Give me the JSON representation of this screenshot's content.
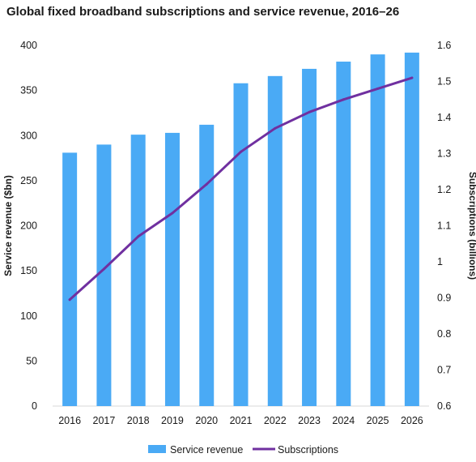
{
  "title": "Global fixed broadband subscriptions and service revenue, 2016–26",
  "colors": {
    "bar": "#4aaaf5",
    "line": "#7030a0"
  },
  "chart_data": {
    "type": "bar+line",
    "title": "Global fixed broadband subscriptions and service revenue, 2016–26",
    "categories": [
      "2016",
      "2017",
      "2018",
      "2019",
      "2020",
      "2021",
      "2022",
      "2023",
      "2024",
      "2025",
      "2026"
    ],
    "series": [
      {
        "name": "Service revenue",
        "type": "bar",
        "axis": "left",
        "values": [
          281,
          290,
          301,
          303,
          312,
          358,
          366,
          374,
          382,
          390,
          392
        ]
      },
      {
        "name": "Subscriptions",
        "type": "line",
        "axis": "right",
        "values": [
          0.895,
          0.98,
          1.07,
          1.135,
          1.215,
          1.305,
          1.37,
          1.415,
          1.45,
          1.48,
          1.51
        ]
      }
    ],
    "ylabel": "Service revenue ($bn)",
    "y2label": "Subscriptions (billions)",
    "ylim": [
      0,
      400
    ],
    "y2lim": [
      0.6,
      1.6
    ],
    "yticks": [
      "0",
      "50",
      "100",
      "150",
      "200",
      "250",
      "300",
      "350",
      "400"
    ],
    "y2ticks": [
      "0.6",
      "0.7",
      "0.8",
      "0.9",
      "1",
      "1.1",
      "1.2",
      "1.3",
      "1.4",
      "1.5",
      "1.6"
    ],
    "grid": false,
    "legend": "bottom"
  }
}
